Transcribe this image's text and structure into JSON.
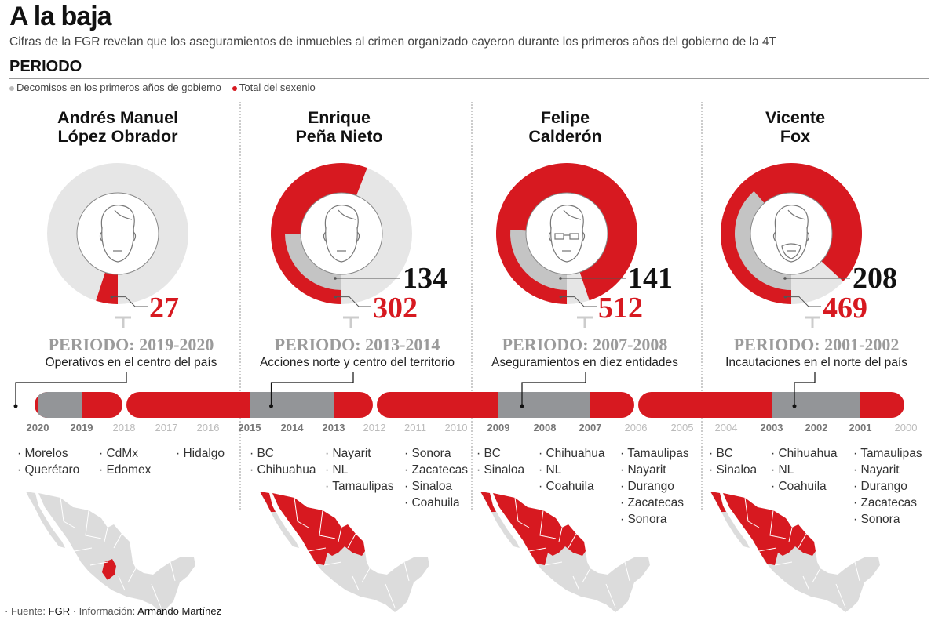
{
  "header": {
    "title": "A la baja",
    "subtitle": "Cifras de la FGR revelan que los aseguramientos de inmuebles al crimen organizado cayeron durante los primeros años del gobierno de la 4T",
    "section": "PERIODO"
  },
  "legend": [
    {
      "label": "Decomisos en los primeros años de gobierno",
      "color": "#bdbdbd"
    },
    {
      "label": "Total del sexenio",
      "color": "#d71920"
    }
  ],
  "colors": {
    "red": "#d71920",
    "bar_grey": "#939598",
    "ring_bg": "#e6e6e6",
    "inner_grey": "#c4c4c4",
    "map_grey": "#dcdcdc"
  },
  "presidents": [
    {
      "name_line1": "Andrés Manuel",
      "name_line2": "López Obrador",
      "first_years": null,
      "total": "27",
      "period": "PERIODO: 2019-2020",
      "period_text": "Operativos en el centro del país",
      "states": [
        [
          "Morelos",
          "Querétaro"
        ],
        [
          "CdMx",
          "Edomex"
        ],
        [
          "Hidalgo"
        ]
      ]
    },
    {
      "name_line1": "Enrique",
      "name_line2": "Peña Nieto",
      "first_years": "134",
      "total": "302",
      "period": "PERIODO: 2013-2014",
      "period_text": "Acciones norte y centro del territorio",
      "states": [
        [
          "BC",
          "Chihuahua"
        ],
        [
          "Nayarit",
          "NL",
          "Tamaulipas"
        ],
        [
          "Sonora",
          "Zacatecas",
          "Sinaloa",
          "Coahuila"
        ]
      ]
    },
    {
      "name_line1": "Felipe",
      "name_line2": "Calderón",
      "first_years": "141",
      "total": "512",
      "period": "PERIODO: 2007-2008",
      "period_text": "Aseguramientos en diez entidades",
      "states": [
        [
          "BC",
          "Sinaloa"
        ],
        [
          "Chihuahua",
          "NL",
          "Coahuila"
        ],
        [
          "Tamaulipas",
          "Nayarit",
          "Durango",
          "Zacatecas",
          "Sonora"
        ]
      ]
    },
    {
      "name_line1": "Vicente",
      "name_line2": "Fox",
      "first_years": "208",
      "total": "469",
      "period": "PERIODO: 2001-2002",
      "period_text": "Incautaciones en el norte del país",
      "states": [
        [
          "BC",
          "Sinaloa"
        ],
        [
          "Chihuahua",
          "NL",
          "Coahuila"
        ],
        [
          "Tamaulipas",
          "Nayarit",
          "Durango",
          "Zacatecas",
          "Sonora"
        ]
      ]
    }
  ],
  "chart_data": {
    "type": "donut",
    "title": "A la baja",
    "scale_max": 540,
    "series": [
      {
        "name": "Decomisos en los primeros años de gobierno",
        "values": [
          null,
          134,
          141,
          208
        ]
      },
      {
        "name": "Total del sexenio",
        "values": [
          27,
          302,
          512,
          469
        ]
      }
    ],
    "categories": [
      "Andrés Manuel López Obrador",
      "Enrique Peña Nieto",
      "Felipe Calderón",
      "Vicente Fox"
    ],
    "timeline": {
      "years": [
        "2020",
        "2019",
        "2018",
        "2017",
        "2016",
        "2015",
        "2014",
        "2013",
        "2012",
        "2011",
        "2010",
        "2009",
        "2008",
        "2007",
        "2006",
        "2005",
        "2004",
        "2003",
        "2002",
        "2001",
        "2000"
      ],
      "highlighted_years": [
        "2020",
        "2019",
        "2015",
        "2014",
        "2013",
        "2009",
        "2008",
        "2007",
        "2003",
        "2002",
        "2001"
      ],
      "segments": [
        {
          "start": 2020,
          "grey_from": 2020,
          "grey_to": 2019,
          "end": 2018
        },
        {
          "start": 2018,
          "grey_from": 2015,
          "grey_to": 2013,
          "end": 2012
        },
        {
          "start": 2012,
          "grey_from": 2009,
          "grey_to": 2007,
          "end": 2006
        },
        {
          "start": 2006,
          "grey_from": 2003,
          "grey_to": 2001,
          "end": 2000
        }
      ],
      "markers": [
        2019.5,
        2013.5,
        2007.5,
        2001.5
      ]
    }
  },
  "footer": {
    "source_label": "· Fuente:",
    "source": "FGR",
    "info_label": "· Información:",
    "author": "Armando Martínez"
  }
}
